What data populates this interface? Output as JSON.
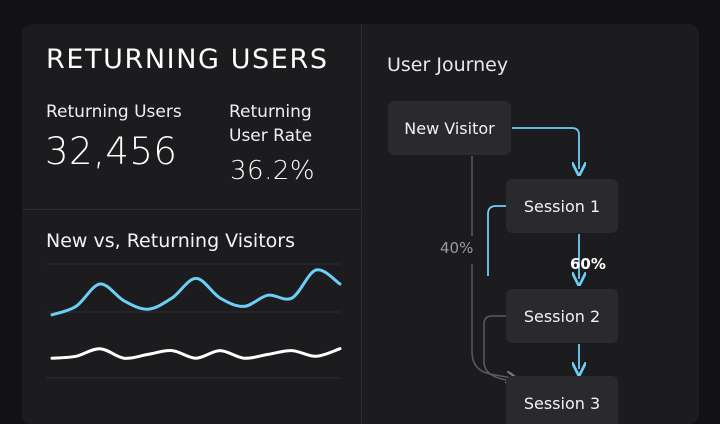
{
  "header": {
    "title": "RETURNING USERS"
  },
  "kpis": {
    "returning_users": {
      "label": "Returning Users",
      "value": "32,456"
    },
    "returning_rate": {
      "label_line1": "Returning",
      "label_line2": "User Rate",
      "value": "36.2%"
    }
  },
  "chart": {
    "title": "New vs, Returning Visitors"
  },
  "chart_data": {
    "type": "line",
    "title": "New vs, Returning Visitors",
    "xlabel": "",
    "ylabel": "",
    "grid": true,
    "series": [
      {
        "values": [
          0.2,
          0.35,
          0.75,
          0.45,
          0.3,
          0.5,
          0.85,
          0.5,
          0.35,
          0.55,
          0.5,
          1.0,
          0.75
        ]
      },
      {
        "values": [
          0.1,
          0.15,
          0.35,
          0.1,
          0.2,
          0.3,
          0.1,
          0.3,
          0.1,
          0.2,
          0.3,
          0.15,
          0.35
        ]
      }
    ],
    "colors": [
      "#6ccff6",
      "#ffffff"
    ]
  },
  "journey": {
    "title": "User Journey",
    "nodes": {
      "new_visitor": "New Visitor",
      "session1": "Session 1",
      "session2": "Session 2",
      "session3": "Session 3"
    },
    "percent_return": "40%",
    "percent_s1_s2": "60%",
    "accent_color": "#6ccff6"
  }
}
